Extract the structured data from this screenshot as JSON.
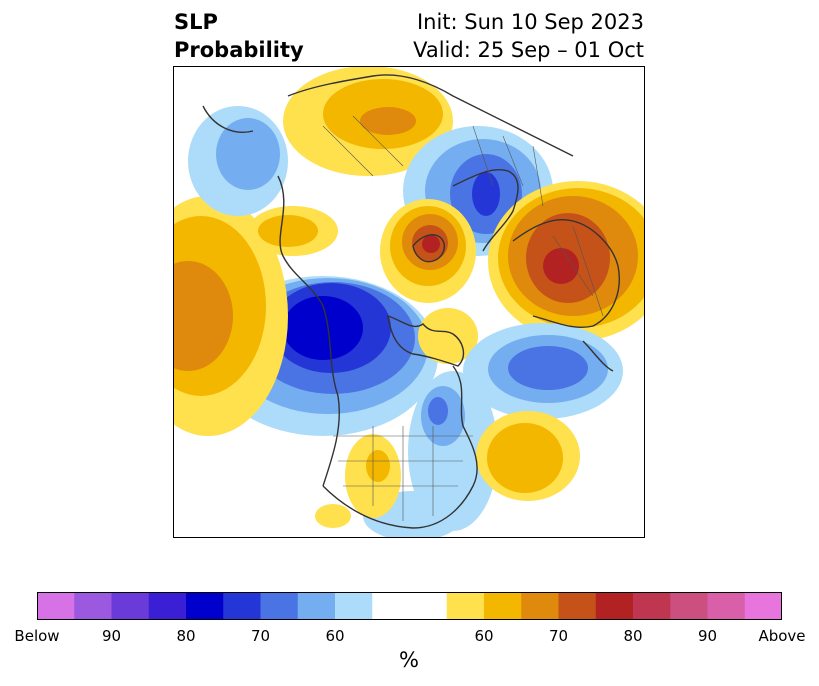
{
  "title": {
    "left_line1": "SLP",
    "left_line2": "Probability",
    "right_line1": "Init: Sun 10 Sep 2023",
    "right_line2": "Valid: 25 Sep – 01 Oct"
  },
  "colorbar": {
    "unit_label": "%",
    "colors": [
      "#d672e6",
      "#9b59e0",
      "#6b3bd9",
      "#3a1fd4",
      "#0000cc",
      "#2436d6",
      "#4a74e3",
      "#74aef0",
      "#acdcfa",
      "#ffffff",
      "#ffffff",
      "#ffe04d",
      "#f3b700",
      "#df8a0c",
      "#c55218",
      "#b22222",
      "#bf3650",
      "#cb4f7f",
      "#d95fa8",
      "#e875de"
    ],
    "ticks": [
      "Below",
      "90",
      "80",
      "70",
      "60",
      "60",
      "70",
      "80",
      "90",
      "Above"
    ]
  },
  "legend_colors": {
    "below_strong": "#0000cc",
    "below_weak": "#acdcfa",
    "above_weak": "#ffe04d",
    "above_strong": "#b22222"
  }
}
